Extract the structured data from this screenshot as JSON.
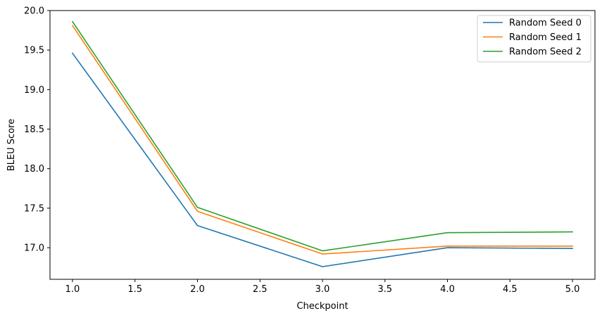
{
  "chart_data": {
    "type": "line",
    "title": "",
    "xlabel": "Checkpoint",
    "ylabel": "BLEU Score",
    "xlim": [
      0.82,
      5.18
    ],
    "ylim": [
      16.6,
      20.0
    ],
    "xticks": [
      "1.0",
      "1.5",
      "2.0",
      "2.5",
      "3.0",
      "3.5",
      "4.0",
      "4.5",
      "5.0"
    ],
    "yticks": [
      "17.0",
      "17.5",
      "18.0",
      "18.5",
      "19.0",
      "19.5",
      "20.0"
    ],
    "grid": false,
    "legend_position": "top-right",
    "x": [
      1,
      2,
      3,
      4,
      5
    ],
    "series": [
      {
        "name": "Random Seed 0",
        "color": "#1f77b4",
        "values": [
          19.46,
          17.28,
          16.76,
          17.0,
          16.99
        ]
      },
      {
        "name": "Random Seed 1",
        "color": "#ff7f0e",
        "values": [
          19.81,
          17.46,
          16.92,
          17.02,
          17.02
        ]
      },
      {
        "name": "Random Seed 2",
        "color": "#2ca02c",
        "values": [
          19.86,
          17.51,
          16.96,
          17.19,
          17.2
        ]
      }
    ]
  }
}
